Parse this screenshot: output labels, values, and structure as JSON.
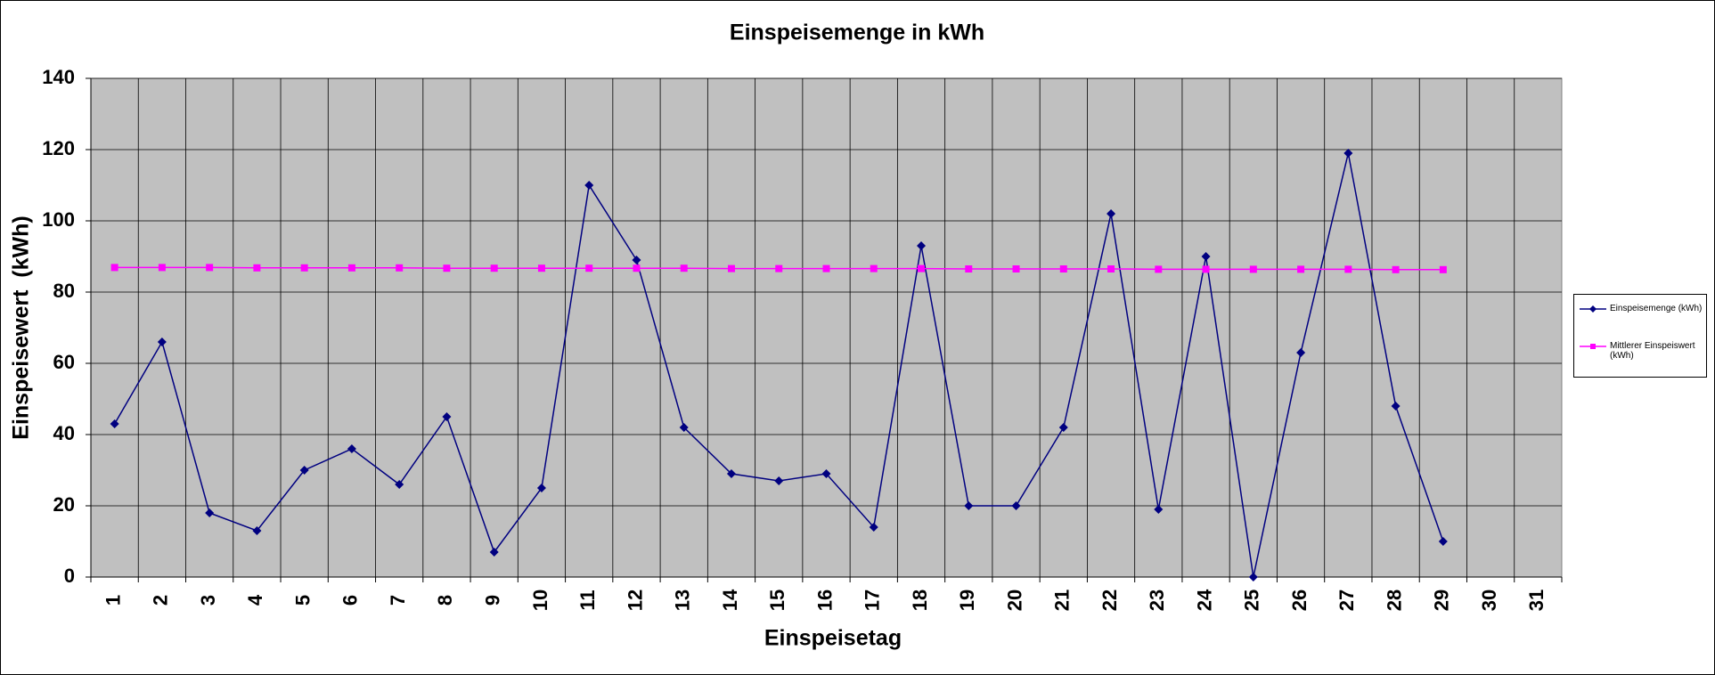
{
  "chart_data": {
    "type": "line",
    "title": "Einspeisemenge in kWh",
    "x_label": "Einspeisetag",
    "y_label": "Einspeisewert  (kWh)",
    "categories": [
      "1",
      "2",
      "3",
      "4",
      "5",
      "6",
      "7",
      "8",
      "9",
      "10",
      "11",
      "12",
      "13",
      "14",
      "15",
      "16",
      "17",
      "18",
      "19",
      "20",
      "21",
      "22",
      "23",
      "24",
      "25",
      "26",
      "27",
      "28",
      "29",
      "30",
      "31"
    ],
    "series": [
      {
        "name": "Einspeisemenge (kWh)",
        "color": "#000080",
        "marker": "diamond",
        "values": [
          43,
          66,
          18,
          13,
          30,
          36,
          26,
          45,
          7,
          25,
          110,
          89,
          42,
          29,
          27,
          29,
          14,
          93,
          20,
          20,
          42,
          102,
          19,
          90,
          0,
          63,
          119,
          48,
          10,
          null,
          null
        ]
      },
      {
        "name": "Mittlerer Einspeiswert (kWh)",
        "color": "#ff00ff",
        "marker": "square",
        "values": [
          86.9,
          86.9,
          86.9,
          86.8,
          86.8,
          86.8,
          86.8,
          86.7,
          86.7,
          86.7,
          86.7,
          86.7,
          86.7,
          86.6,
          86.6,
          86.6,
          86.6,
          86.6,
          86.5,
          86.5,
          86.5,
          86.5,
          86.4,
          86.4,
          86.4,
          86.4,
          86.4,
          86.3,
          86.3,
          null,
          null
        ]
      }
    ],
    "ylim": [
      0,
      140
    ],
    "yticks": [
      0,
      20,
      40,
      60,
      80,
      100,
      120,
      140
    ],
    "grid": true,
    "legend": "right"
  }
}
